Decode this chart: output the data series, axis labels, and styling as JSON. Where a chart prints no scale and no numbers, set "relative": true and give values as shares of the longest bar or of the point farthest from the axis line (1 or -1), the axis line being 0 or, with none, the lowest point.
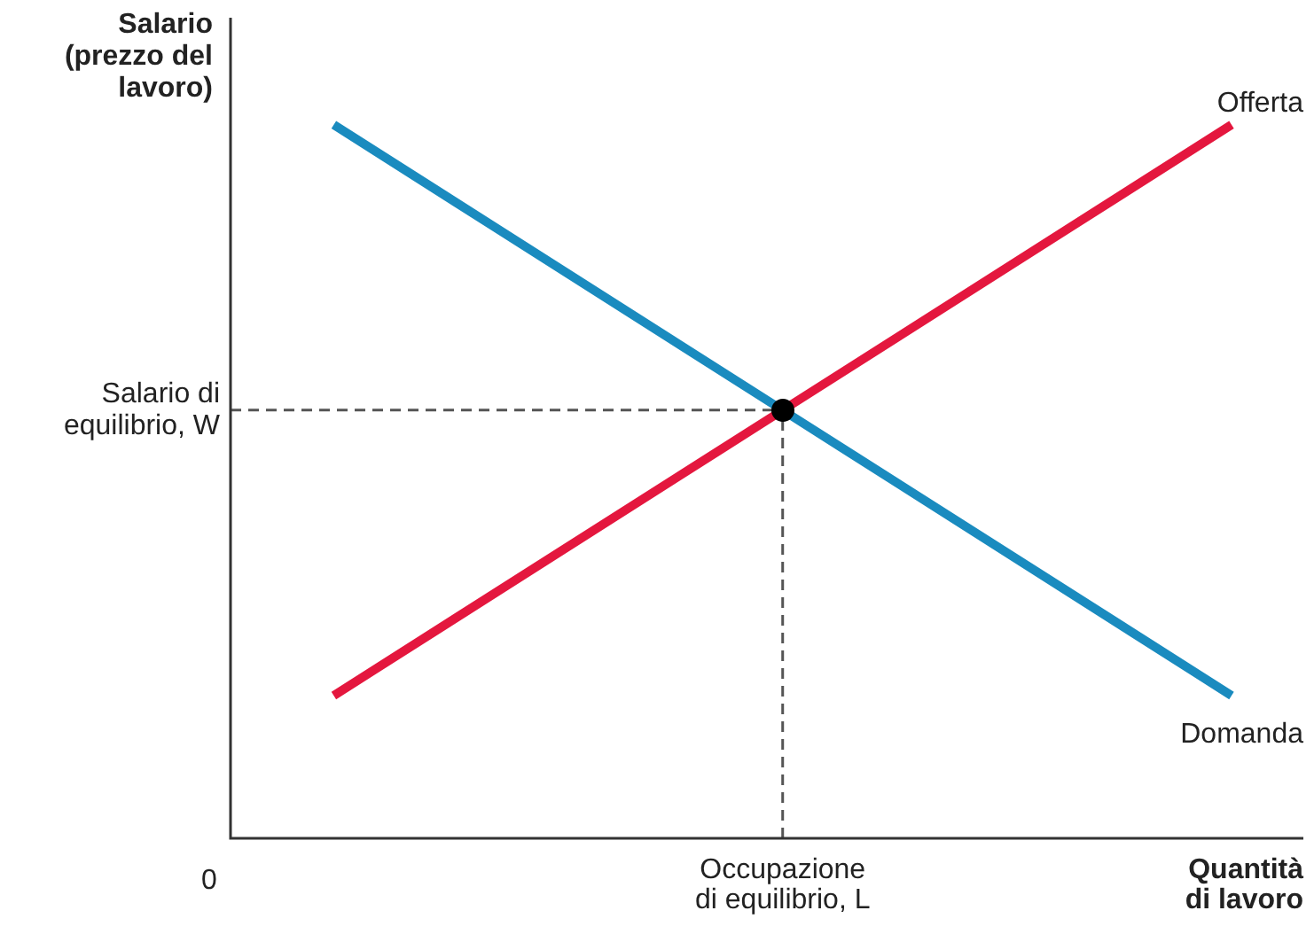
{
  "chart_data": {
    "type": "line",
    "relative": true,
    "ylabel": "Salario (prezzo del lavoro)",
    "xlabel": "Quantità di lavoro",
    "annotations": [
      "0"
    ],
    "categories": [
      null,
      null,
      null
    ],
    "series": [
      {
        "name": "Domanda",
        "color": "#1a8bbf",
        "values": [
          1,
          0.6,
          0.2
        ]
      },
      {
        "name": "Offerta",
        "color": "#e4173e",
        "values": [
          0.2,
          0.6,
          1
        ]
      }
    ],
    "ref_lines": [
      {
        "axis": "y",
        "value": 0.6,
        "label": "Salario di equilibrio, W",
        "color": "#555555",
        "line_style": "dashed"
      },
      {
        "axis": "x",
        "label": "Occupazione di equilibrio, L",
        "color": "#555555",
        "line_style": "dashed"
      }
    ],
    "marker": "none",
    "line_style": "solid",
    "legend": false
  }
}
